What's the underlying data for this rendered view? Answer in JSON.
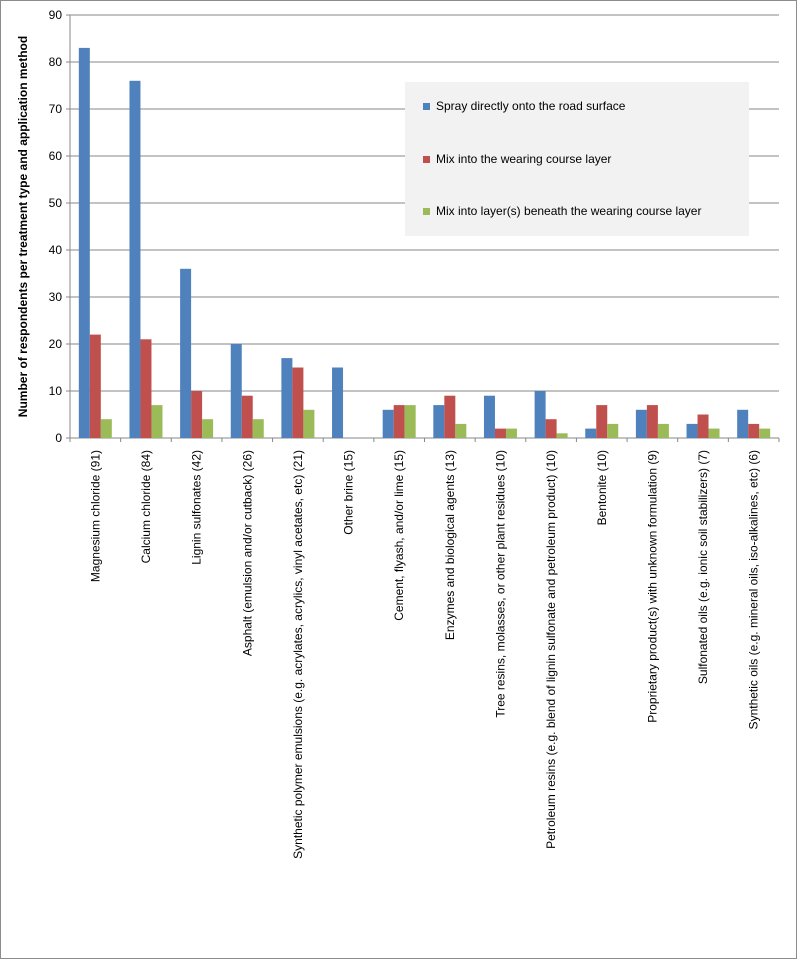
{
  "chart_data": {
    "type": "bar",
    "title": "",
    "xlabel": "",
    "ylabel": "Number of respondents per treatment type and application method",
    "ylim": [
      0,
      90
    ],
    "yticks": [
      0,
      10,
      20,
      30,
      40,
      50,
      60,
      70,
      80,
      90
    ],
    "grid": true,
    "legend_position": "top-right",
    "categories": [
      "Magnesium chloride (91)",
      "Calcium chloride (84)",
      "Lignin sulfonates (42)",
      "Asphalt (emulsion and/or cutback) (26)",
      "Synthetic polymer emulsions (e.g. acrylates, acrylics, vinyl acetates, etc) (21)",
      "Other brine (15)",
      "Cement, flyash, and/or lime (15)",
      "Enzymes and biological agents (13)",
      "Tree resins, molasses, or other plant residues (10)",
      "Petroleum resins (e.g. blend of lignin sulfonate and petroleum product) (10)",
      "Bentonite (10)",
      "Proprietary product(s) with unknown formulation (9)",
      "Sulfonated oils (e.g. ionic soil stabilizers) (7)",
      "Synthetic oils (e.g. mineral oils, iso-alkalines, etc) (6)"
    ],
    "series": [
      {
        "name": "Spray directly onto the road surface",
        "color": "#4f81bd",
        "values": [
          83,
          76,
          36,
          20,
          17,
          15,
          6,
          7,
          9,
          10,
          2,
          6,
          3,
          6
        ]
      },
      {
        "name": "Mix into the wearing course layer",
        "color": "#c0504d",
        "values": [
          22,
          21,
          10,
          9,
          15,
          0,
          7,
          9,
          2,
          4,
          7,
          7,
          5,
          3
        ]
      },
      {
        "name": "Mix into layer(s) beneath the wearing course layer",
        "color": "#9bbb59",
        "values": [
          4,
          7,
          4,
          4,
          6,
          0,
          7,
          3,
          2,
          1,
          3,
          3,
          2,
          2
        ]
      }
    ]
  }
}
